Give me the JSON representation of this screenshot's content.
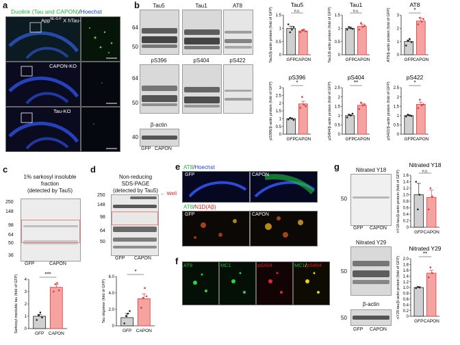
{
  "panel_labels": {
    "a": "a",
    "b": "b",
    "c": "c",
    "d": "d",
    "e": "e",
    "f": "f",
    "g": "g"
  },
  "panel_a": {
    "title_part1": "Duolink (Tau and CAPON)",
    "title_sep": "/",
    "title_part2": "Hoechst",
    "rows": [
      "App NL-G-F X hTau-KI",
      "CAPON-KO",
      "Tau-KO"
    ],
    "row1_prefix": "App",
    "row1_sup": "NL-G-F",
    "row1_suffix": " X hTau-KI"
  },
  "panel_b": {
    "blots": [
      {
        "title": "Tau5",
        "markers": [
          "64",
          "50"
        ]
      },
      {
        "title": "Tau1",
        "markers": [
          "64",
          "50"
        ]
      },
      {
        "title": "AT8",
        "markers": [
          "64",
          "50"
        ]
      },
      {
        "title": "pS396",
        "markers": [
          "64",
          "50"
        ]
      },
      {
        "title": "pS404",
        "markers": [
          "64",
          "50"
        ]
      },
      {
        "title": "pS422",
        "markers": [
          "64",
          "50"
        ]
      },
      {
        "title": "β-actin",
        "markers": [
          "40"
        ]
      }
    ],
    "lane_labels": [
      "GFP",
      "CAPON"
    ]
  },
  "panel_c": {
    "title_lines": [
      "1% sarkosyl insoluble",
      "fraction",
      "(detected by Tau5)"
    ],
    "markers": [
      "250",
      "148",
      "98",
      "64",
      "50",
      "36"
    ],
    "lane_labels": [
      "GFP",
      "CAPON"
    ]
  },
  "panel_d": {
    "title_lines": [
      "Non-reducing",
      "SDS-PAGE",
      "(detected by Tau5)"
    ],
    "markers": [
      "250",
      "148",
      "98",
      "64",
      "50"
    ],
    "well_label": "Well",
    "lane_labels": [
      "GFP",
      "CAPON"
    ]
  },
  "panel_e": {
    "top_title": {
      "a": "AT8",
      "sep": "/",
      "b": "Hoechst"
    },
    "bottom_title": {
      "a": "AT8",
      "sep": "/",
      "b": "N1D(Aβ)"
    },
    "labels": [
      "GFP",
      "CAPON"
    ]
  },
  "panel_f": {
    "labels": {
      "at8": "AT8",
      "mc1": "MC1",
      "ps404": "pS404",
      "merge_a": "MC1",
      "merge_sep": "/",
      "merge_b": "pS404"
    }
  },
  "panel_g": {
    "blots": [
      {
        "title": "Nitrated Y18",
        "markers": [
          "50"
        ]
      },
      {
        "title": "Nitrated Y29",
        "markers": [
          "50"
        ]
      },
      {
        "title": "β-actin",
        "markers": [
          "50"
        ]
      }
    ],
    "lane_labels": [
      "GFP",
      "CAPON"
    ]
  },
  "chart_data": [
    {
      "type": "bar",
      "panel": "b",
      "title": "Tau5",
      "ylabel": "Tau5/β-actin protein (fold of GFP)",
      "categories": [
        "GFP",
        "CAPON"
      ],
      "values": [
        1.0,
        0.9
      ],
      "errors": [
        0.08,
        0.05
      ],
      "ylim": [
        0,
        1.5
      ],
      "yticks": [
        "0",
        "0.5",
        "1",
        "1.5"
      ],
      "significance": "n.s.",
      "points": [
        [
          1.15,
          0.85,
          0.95,
          1.05
        ],
        [
          0.85,
          0.92,
          0.95,
          0.88
        ]
      ]
    },
    {
      "type": "bar",
      "panel": "b",
      "title": "Tau1",
      "ylabel": "Tau1/β-actin protein (fold of GFP)",
      "categories": [
        "GFP",
        "CAPON"
      ],
      "values": [
        1.0,
        1.07
      ],
      "errors": [
        0.05,
        0.09
      ],
      "ylim": [
        0,
        1.5
      ],
      "yticks": [
        "0",
        "0.5",
        "1",
        "1.5"
      ],
      "significance": "n.s.",
      "points": [
        [
          0.95,
          1.05,
          1.0,
          0.98
        ],
        [
          0.95,
          1.2,
          1.05,
          1.1
        ]
      ]
    },
    {
      "type": "bar",
      "panel": "b",
      "title": "AT8",
      "ylabel": "AT8/β-actin protein (fold of GFP)",
      "categories": [
        "GFP",
        "CAPON"
      ],
      "values": [
        1.0,
        2.55
      ],
      "errors": [
        0.12,
        0.2
      ],
      "ylim": [
        0,
        3
      ],
      "yticks": [
        "0",
        "1",
        "2",
        "3"
      ],
      "significance": "*",
      "points": [
        [
          0.7,
          1.05,
          1.2,
          0.95
        ],
        [
          2.3,
          2.8,
          2.5,
          2.7
        ]
      ]
    },
    {
      "type": "bar",
      "panel": "b",
      "title": "pS396",
      "ylabel": "pS396/β-actin protein (fold of GFP)",
      "categories": [
        "GFP",
        "CAPON"
      ],
      "values": [
        1.0,
        1.95
      ],
      "errors": [
        0.05,
        0.17
      ],
      "ylim": [
        0,
        3
      ],
      "yticks": [
        "0",
        "0.5",
        "1",
        "1.5",
        "2",
        "2.5",
        "3"
      ],
      "significance": "*",
      "points": [
        [
          0.95,
          1.05,
          1.0,
          0.92
        ],
        [
          1.7,
          2.4,
          1.9,
          1.8
        ]
      ]
    },
    {
      "type": "bar",
      "panel": "b",
      "title": "pS404",
      "ylabel": "pS404/β-actin protein (fold of GFP)",
      "categories": [
        "GFP",
        "CAPON"
      ],
      "values": [
        1.0,
        1.55
      ],
      "errors": [
        0.05,
        0.1
      ],
      "ylim": [
        0,
        2.5
      ],
      "yticks": [
        "0",
        "0.5",
        "1",
        "1.5",
        "2",
        "2.5"
      ],
      "significance": "**",
      "points": [
        [
          0.9,
          1.05,
          1.0,
          1.1
        ],
        [
          1.35,
          1.7,
          1.55,
          1.6
        ]
      ]
    },
    {
      "type": "bar",
      "panel": "b",
      "title": "pS422",
      "ylabel": "pS422/β-actin protein (fold of GFP)",
      "categories": [
        "GFP",
        "CAPON"
      ],
      "values": [
        1.0,
        1.6
      ],
      "errors": [
        0.04,
        0.12
      ],
      "ylim": [
        0,
        2.5
      ],
      "yticks": [
        "0",
        "0.5",
        "1",
        "1.5",
        "2",
        "2.5"
      ],
      "significance": "*",
      "points": [
        [
          0.95,
          1.05,
          1.0,
          0.98
        ],
        [
          1.4,
          1.85,
          1.55,
          1.6
        ]
      ]
    },
    {
      "type": "bar",
      "panel": "c",
      "title": "",
      "ylabel": "Sarkosyl insoluble tau (fold of GFP)",
      "categories": [
        "GFP",
        "CAPON"
      ],
      "values": [
        1.0,
        3.35
      ],
      "errors": [
        0.15,
        0.22
      ],
      "ylim": [
        0,
        4
      ],
      "yticks": [
        "0",
        "1",
        "2",
        "3",
        "4"
      ],
      "significance": "***",
      "points": [
        [
          0.7,
          1.1,
          1.3,
          0.9
        ],
        [
          3.0,
          3.6,
          3.7,
          3.1
        ]
      ]
    },
    {
      "type": "bar",
      "panel": "d",
      "title": "",
      "ylabel": "Tau oligomer (fold of GFP)",
      "categories": [
        "GFP",
        "CAPON"
      ],
      "values": [
        1.0,
        3.3
      ],
      "errors": [
        0.5,
        0.6
      ],
      "ylim": [
        0,
        6
      ],
      "yticks": [
        "0",
        "2.0",
        "4.0",
        "6.0"
      ],
      "significance": "*",
      "points": [
        [
          0.3,
          1.2,
          1.5,
          1.8
        ],
        [
          2.2,
          3.4,
          4.6,
          3.6
        ]
      ]
    },
    {
      "type": "bar",
      "panel": "g",
      "title": "Nitrated Y18",
      "ylabel": "nY18-tau/β-actin protein (fold of GFP)",
      "categories": [
        "GFP",
        "CAPON"
      ],
      "values": [
        1.0,
        0.92
      ],
      "errors": [
        0.35,
        0.22
      ],
      "ylim": [
        0,
        1.6
      ],
      "yticks": [
        "0",
        "0.2",
        "0.4",
        "0.6",
        "0.8",
        "1.0",
        "1.2",
        "1.4",
        "1.6"
      ],
      "significance": "n.s.",
      "points": [
        [
          1.4,
          0.55,
          1.0
        ],
        [
          0.55,
          1.2,
          0.95
        ]
      ]
    },
    {
      "type": "bar",
      "panel": "g",
      "title": "Nitrated Y29",
      "ylabel": "nY29-tau/β-actin protein (fold of GFP)",
      "categories": [
        "GFP",
        "CAPON"
      ],
      "values": [
        1.0,
        1.5
      ],
      "errors": [
        0.03,
        0.1
      ],
      "ylim": [
        0,
        2.0
      ],
      "yticks": [
        "0",
        "0.2",
        "0.4",
        "0.6",
        "0.8",
        "1.0",
        "1.2",
        "1.4",
        "1.6",
        "1.8",
        "2.0"
      ],
      "significance": "**",
      "points": [
        [
          0.98,
          1.02,
          1.0
        ],
        [
          1.35,
          1.7,
          1.5
        ]
      ]
    }
  ]
}
